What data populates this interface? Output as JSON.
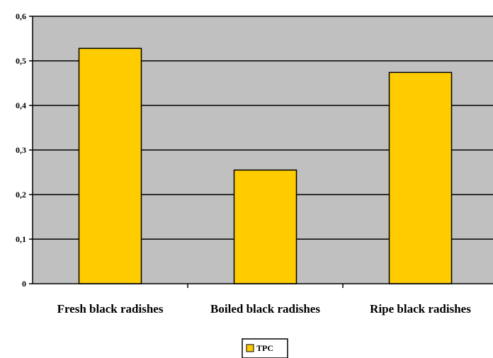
{
  "chart_data": {
    "type": "bar",
    "categories": [
      "Fresh black radishes",
      "Boiled black radishes",
      "Ripe black radishes"
    ],
    "series": [
      {
        "name": "TPC",
        "values": [
          0.528,
          0.255,
          0.474
        ]
      }
    ],
    "y_ticks": [
      "0",
      "0,1",
      "0,2",
      "0,3",
      "0,4",
      "0,5",
      "0,6"
    ],
    "ylim": [
      0,
      0.6
    ],
    "grid": true,
    "legend_position": "bottom",
    "colors": {
      "bar_fill": "#FFCC00",
      "plot_background": "#C0C0C0",
      "gridline": "#000000"
    }
  }
}
